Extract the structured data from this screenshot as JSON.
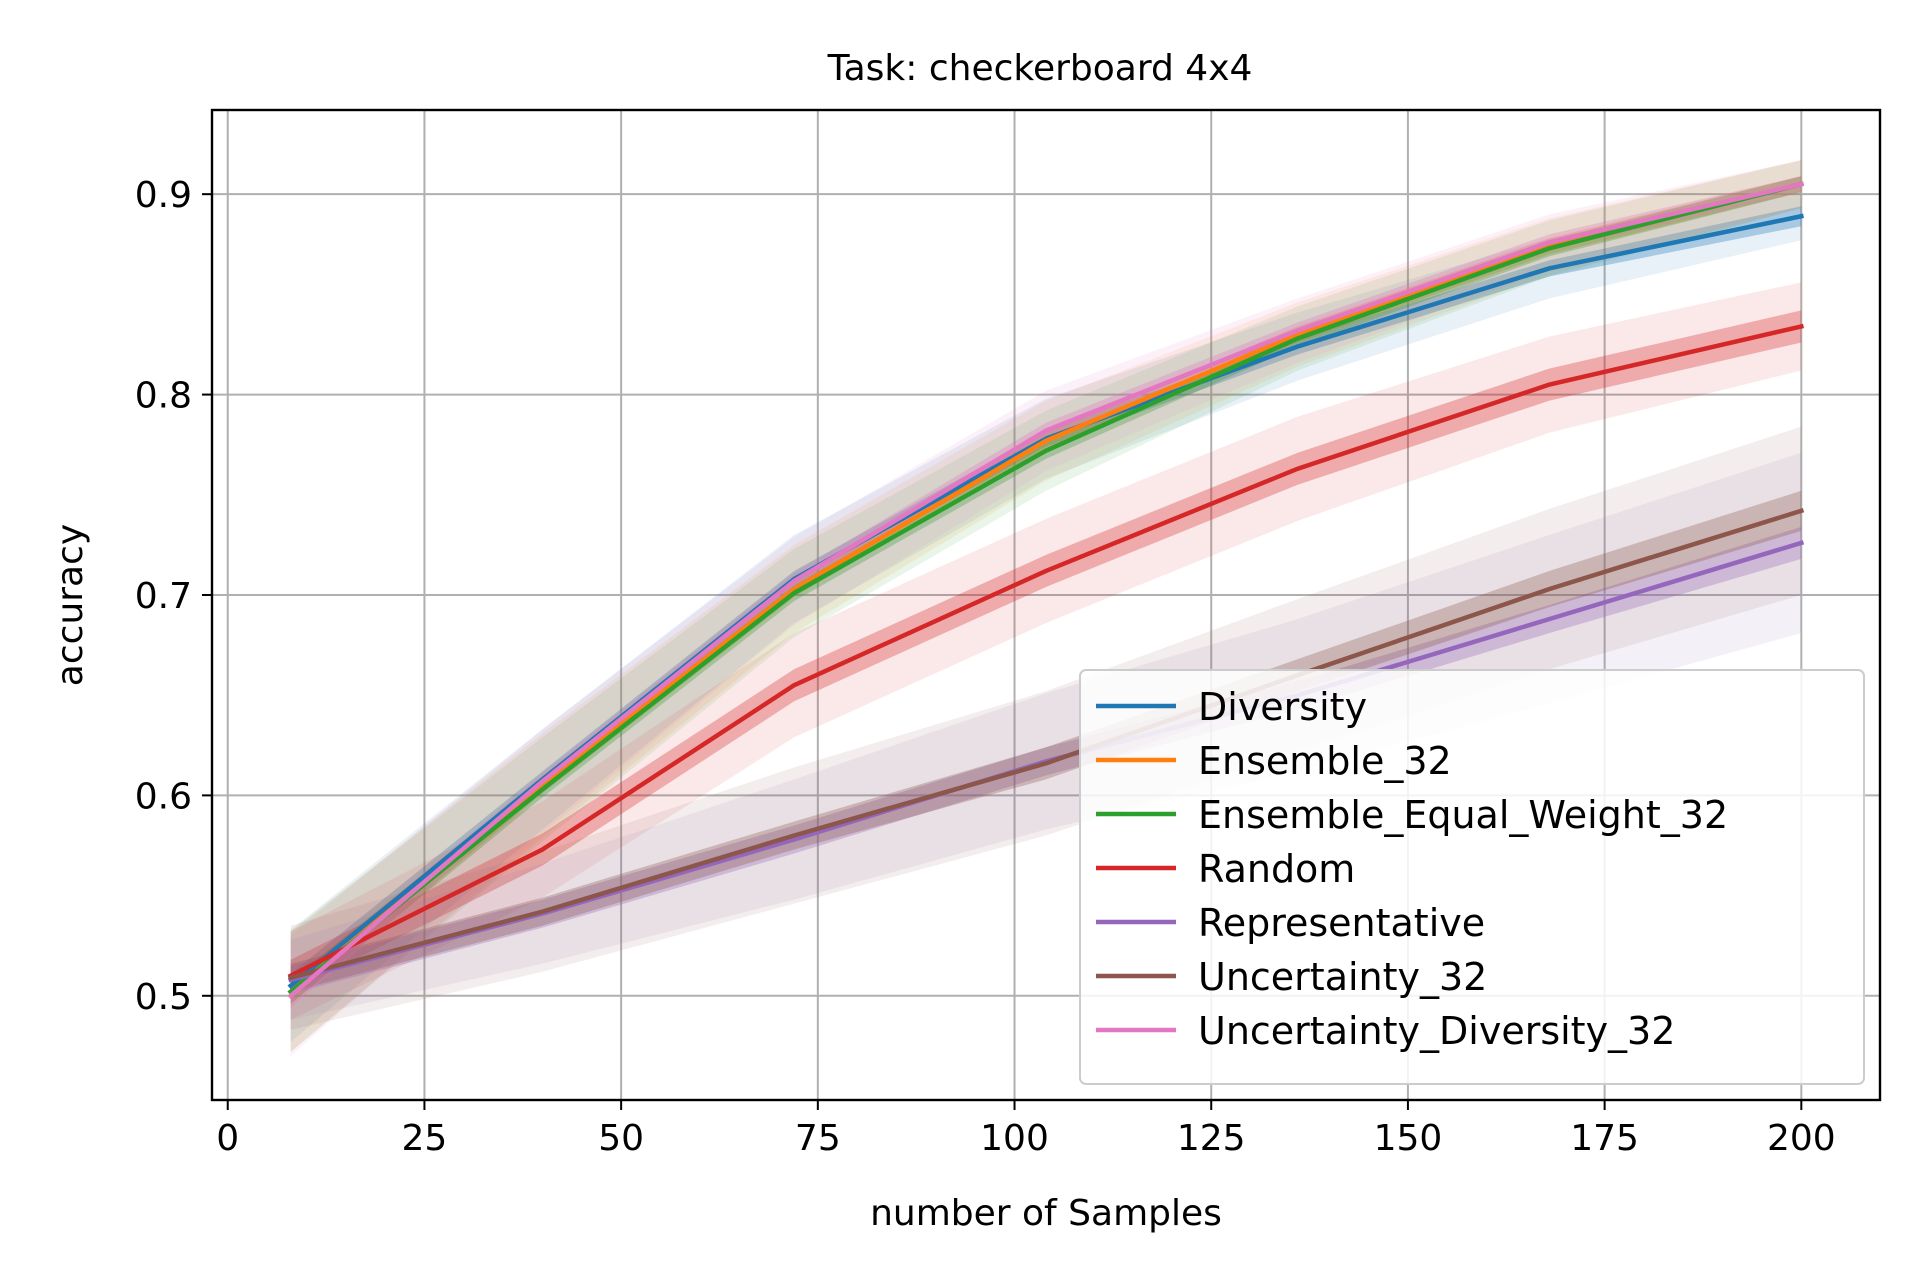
{
  "chart_data": {
    "type": "line",
    "title": "Task: checkerboard 4x4",
    "xlabel": "number of Samples",
    "ylabel": "accuracy",
    "xlim": [
      -2,
      210
    ],
    "ylim": [
      0.448,
      0.942
    ],
    "xticks": [
      0,
      25,
      50,
      75,
      100,
      125,
      150,
      175,
      200
    ],
    "yticks": [
      0.5,
      0.6,
      0.7,
      0.8,
      0.9
    ],
    "grid": true,
    "legend_position": "lower-right",
    "x": [
      8,
      40,
      72,
      104,
      136,
      168,
      200
    ],
    "series": [
      {
        "name": "Diversity",
        "color": "#1f77b4",
        "values": [
          0.505,
          0.608,
          0.708,
          0.778,
          0.824,
          0.863,
          0.889
        ],
        "band_inner": [
          0.006,
          0.004,
          0.004,
          0.004,
          0.004,
          0.004,
          0.005
        ],
        "band_outer": [
          0.028,
          0.025,
          0.022,
          0.02,
          0.017,
          0.015,
          0.012
        ]
      },
      {
        "name": "Ensemble_32",
        "color": "#ff7f0e",
        "values": [
          0.502,
          0.605,
          0.703,
          0.777,
          0.83,
          0.874,
          0.905
        ],
        "band_inner": [
          0.006,
          0.004,
          0.004,
          0.004,
          0.004,
          0.004,
          0.004
        ],
        "band_outer": [
          0.03,
          0.026,
          0.022,
          0.02,
          0.016,
          0.014,
          0.012
        ]
      },
      {
        "name": "Ensemble_Equal_Weight_32",
        "color": "#2ca02c",
        "values": [
          0.502,
          0.603,
          0.701,
          0.772,
          0.828,
          0.873,
          0.905
        ],
        "band_inner": [
          0.006,
          0.004,
          0.004,
          0.004,
          0.004,
          0.004,
          0.004
        ],
        "band_outer": [
          0.03,
          0.026,
          0.022,
          0.02,
          0.016,
          0.014,
          0.012
        ]
      },
      {
        "name": "Random",
        "color": "#d62728",
        "values": [
          0.51,
          0.573,
          0.655,
          0.712,
          0.763,
          0.805,
          0.834
        ],
        "band_inner": [
          0.008,
          0.008,
          0.008,
          0.008,
          0.008,
          0.008,
          0.008
        ],
        "band_outer": [
          0.022,
          0.024,
          0.026,
          0.026,
          0.026,
          0.024,
          0.022
        ]
      },
      {
        "name": "Representative",
        "color": "#9467bd",
        "values": [
          0.508,
          0.541,
          0.578,
          0.617,
          0.65,
          0.688,
          0.726
        ],
        "band_inner": [
          0.007,
          0.007,
          0.007,
          0.007,
          0.007,
          0.007,
          0.008
        ],
        "band_outer": [
          0.02,
          0.025,
          0.03,
          0.034,
          0.038,
          0.042,
          0.045
        ]
      },
      {
        "name": "Uncertainty_32",
        "color": "#8c564b",
        "values": [
          0.509,
          0.542,
          0.58,
          0.616,
          0.66,
          0.703,
          0.742
        ],
        "band_inner": [
          0.007,
          0.007,
          0.007,
          0.008,
          0.008,
          0.009,
          0.01
        ],
        "band_outer": [
          0.026,
          0.03,
          0.034,
          0.036,
          0.038,
          0.04,
          0.042
        ]
      },
      {
        "name": "Uncertainty_Diversity_32",
        "color": "#e377c2",
        "values": [
          0.5,
          0.607,
          0.707,
          0.782,
          0.832,
          0.876,
          0.905
        ],
        "band_inner": [
          0.006,
          0.004,
          0.004,
          0.004,
          0.004,
          0.004,
          0.004
        ],
        "band_outer": [
          0.03,
          0.026,
          0.022,
          0.02,
          0.016,
          0.014,
          0.012
        ]
      }
    ]
  }
}
